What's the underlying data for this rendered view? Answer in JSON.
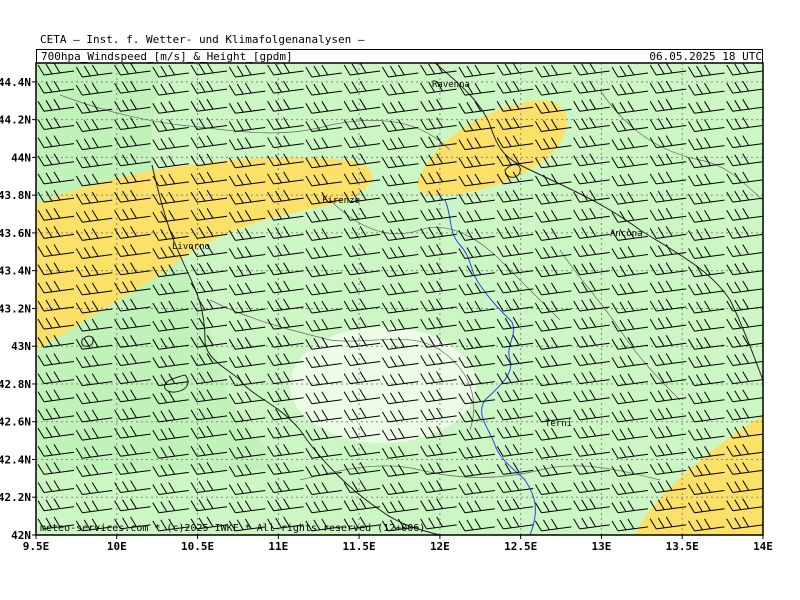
{
  "header": {
    "organization": "CETA — Inst. f. Wetter- und Klimafolgenanalysen —",
    "field": "700hpa_Windspeed_[m/s]_&_Height_[gpdm]",
    "datetime": "06.05.2025 18 UTC"
  },
  "footer": {
    "credit": "meteo-services.com * (c)2025 IWKF * All rights reserved (12+006)"
  },
  "map": {
    "lon_range": [
      9.5,
      14.0
    ],
    "lat_range": [
      42.0,
      44.5
    ],
    "x_ticks": [
      "9.5E",
      "10E",
      "10.5E",
      "11E",
      "11.5E",
      "12E",
      "12.5E",
      "13E",
      "13.5E",
      "14E"
    ],
    "y_ticks": [
      "42N",
      "42.2N",
      "42.4N",
      "42.6N",
      "42.8N",
      "43N",
      "43.2N",
      "43.4N",
      "43.6N",
      "43.8N",
      "44N",
      "44.2N",
      "44.4N"
    ],
    "grid": true,
    "colors": {
      "background": "#ccf7c4",
      "ocean_band": "#a9e7a6",
      "high_speed": "#fde068",
      "low_speed": "#edfce7",
      "river": "#2244ee",
      "grid": "#888888"
    },
    "cities": [
      {
        "name": "Ravenna",
        "lon": 12.2,
        "lat": 44.41
      },
      {
        "name": "Firenze",
        "lon": 11.25,
        "lat": 43.77
      },
      {
        "name": "Livorno",
        "lon": 10.33,
        "lat": 43.55
      },
      {
        "name": "Ancona",
        "lon": 13.05,
        "lat": 43.6
      },
      {
        "name": "Terni",
        "lon": 12.65,
        "lat": 42.57
      }
    ],
    "wind_barbs": {
      "direction": "westerly",
      "columns": 19,
      "rows": 26
    }
  }
}
